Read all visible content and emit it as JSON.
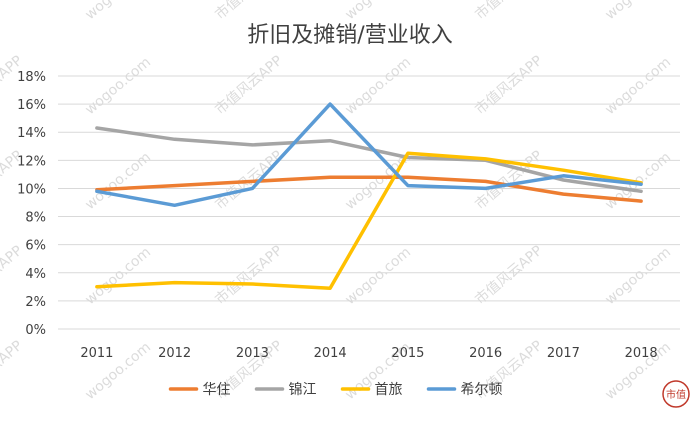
{
  "chart_data": {
    "type": "line",
    "title": "折旧及摊销/营业收入",
    "xlabel": "",
    "ylabel": "",
    "categories": [
      "2011",
      "2012",
      "2013",
      "2014",
      "2015",
      "2016",
      "2017",
      "2018"
    ],
    "y_ticks": [
      "0%",
      "2%",
      "4%",
      "6%",
      "8%",
      "10%",
      "12%",
      "14%",
      "16%",
      "18%"
    ],
    "ylim": [
      0,
      18
    ],
    "y_unit": "%",
    "grid": true,
    "legend_position": "bottom",
    "series": [
      {
        "name": "华住",
        "color": "#ED7D31",
        "values": [
          9.9,
          10.2,
          10.5,
          10.8,
          10.8,
          10.5,
          9.6,
          9.1
        ]
      },
      {
        "name": "锦江",
        "color": "#A5A5A5",
        "values": [
          14.3,
          13.5,
          13.1,
          13.4,
          12.2,
          12.0,
          10.6,
          9.8
        ]
      },
      {
        "name": "首旅",
        "color": "#FFC000",
        "values": [
          3.0,
          3.3,
          3.2,
          2.9,
          12.5,
          12.1,
          11.3,
          10.4
        ]
      },
      {
        "name": "希尔顿",
        "color": "#5B9BD5",
        "values": [
          9.8,
          8.8,
          10.0,
          16.0,
          10.2,
          10.0,
          10.9,
          10.3
        ]
      }
    ]
  },
  "watermark": {
    "text": "市值风云APP",
    "url_text": "wogoo.com",
    "logo_text": "市值"
  }
}
